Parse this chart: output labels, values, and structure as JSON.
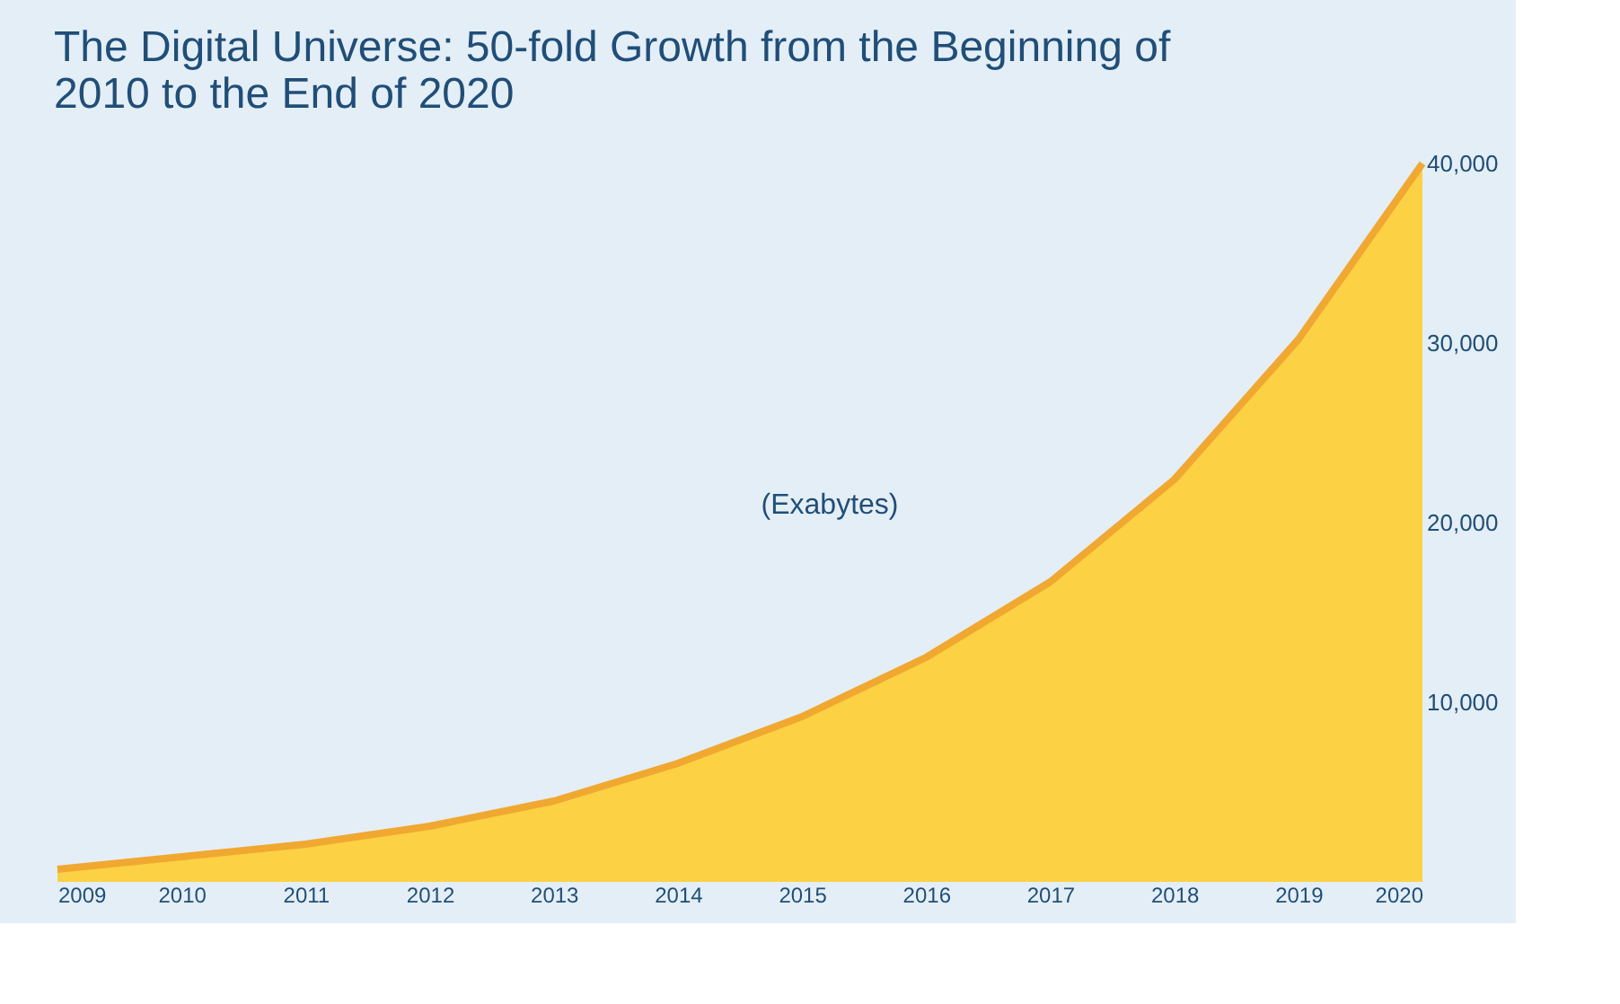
{
  "chart_data": {
    "type": "area",
    "title": [
      "The Digital Universe: 50-fold Growth from the Beginning of",
      "2010 to the End of 2020"
    ],
    "x": [
      2009,
      2010,
      2011,
      2012,
      2013,
      2014,
      2015,
      2016,
      2017,
      2018,
      2019,
      2020
    ],
    "series": [
      {
        "color": "#fcd144",
        "values": [
          700,
          1400,
          2100,
          3100,
          4500,
          6600,
          9200,
          12500,
          16700,
          22400,
          30200,
          40000
        ]
      }
    ],
    "xlim": [
      2009,
      2020
    ],
    "xticks": [
      2009,
      2010,
      2011,
      2012,
      2013,
      2014,
      2015,
      2016,
      2017,
      2018,
      2019,
      2020
    ],
    "ylim": [
      0,
      40000
    ],
    "yticks": [
      {
        "value": 10000,
        "label": "10,000"
      },
      {
        "value": 20000,
        "label": "20,000"
      },
      {
        "value": 30000,
        "label": "30,000"
      },
      {
        "value": 40000,
        "label": "40,000"
      }
    ],
    "annotations": [
      "(Exabytes)"
    ],
    "grid": false
  }
}
